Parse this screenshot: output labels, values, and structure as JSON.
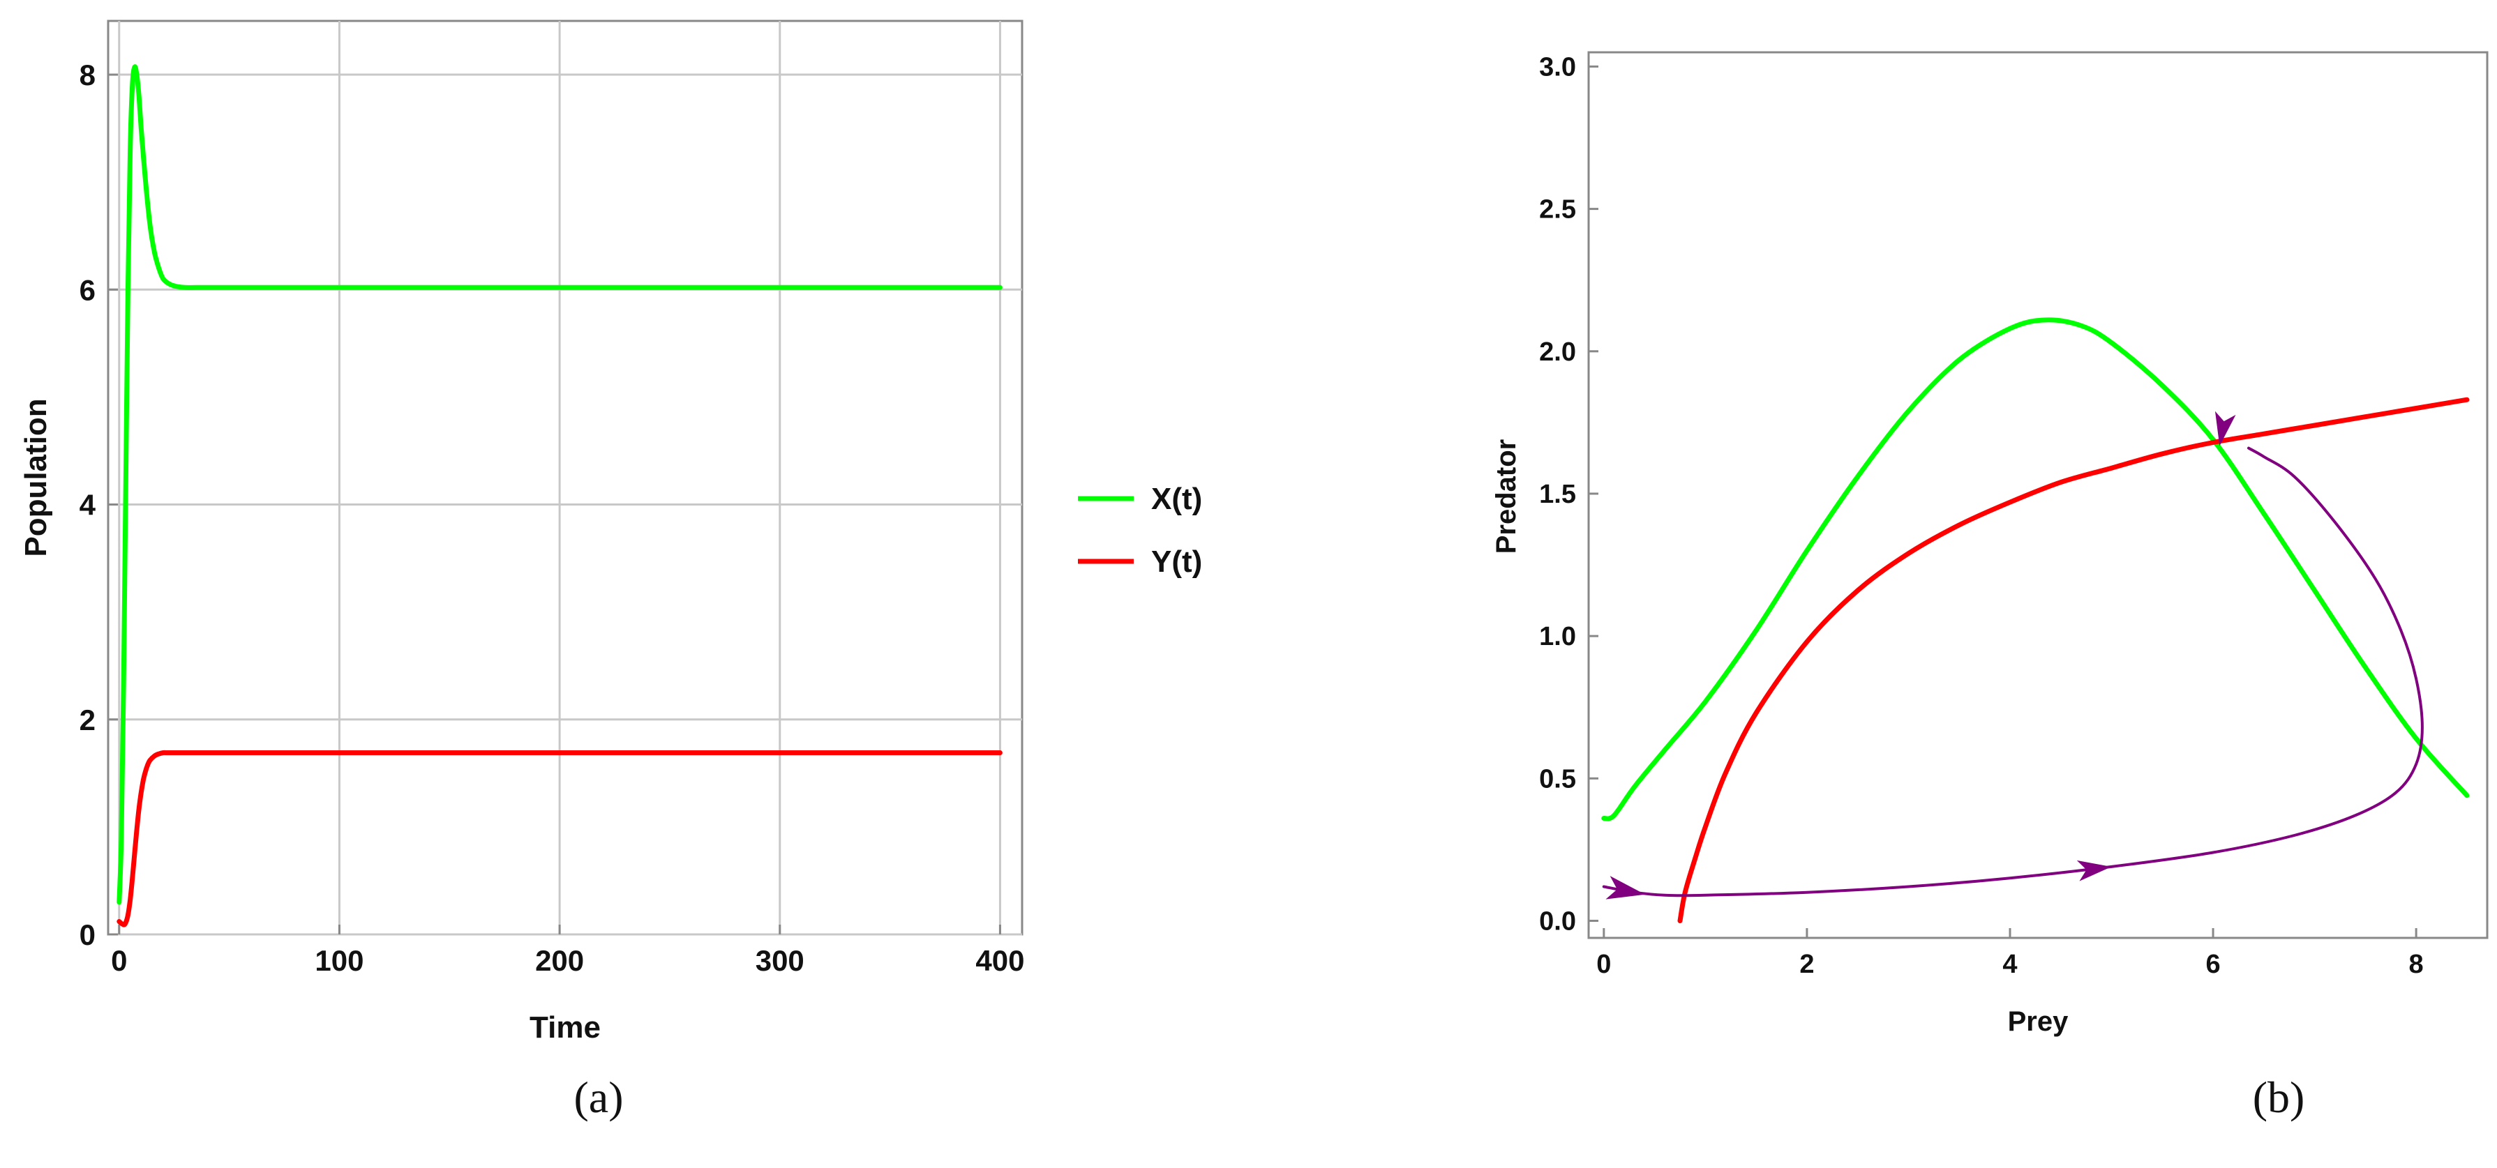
{
  "captions": {
    "a": "(a)",
    "b": "(b)"
  },
  "chart_data": [
    {
      "type": "line",
      "xlabel": "Time",
      "ylabel": "Population",
      "xlim": [
        -5,
        410
      ],
      "ylim": [
        0,
        8.5
      ],
      "xticks": [
        0,
        100,
        200,
        300,
        400
      ],
      "yticks": [
        0,
        2,
        4,
        6,
        8
      ],
      "grid": true,
      "legend_position": "right",
      "series": [
        {
          "name": "X(t)",
          "color": "#00ff00",
          "x": [
            0,
            1,
            2,
            3,
            4,
            5,
            6,
            7,
            8,
            9,
            10,
            12,
            14,
            16,
            18,
            20,
            23,
            26,
            30,
            40,
            60,
            100,
            200,
            300,
            400
          ],
          "y": [
            0.3,
            0.9,
            2.3,
            4.2,
            6.0,
            7.3,
            7.9,
            8.07,
            8.0,
            7.8,
            7.5,
            7.0,
            6.6,
            6.35,
            6.2,
            6.1,
            6.05,
            6.03,
            6.02,
            6.02,
            6.02,
            6.02,
            6.02,
            6.02,
            6.02
          ]
        },
        {
          "name": "Y(t)",
          "color": "#ff0000",
          "x": [
            0,
            2,
            3,
            4,
            5,
            6,
            7,
            8,
            9,
            10,
            11,
            12,
            13,
            14,
            16,
            18,
            20,
            22,
            25,
            30,
            50,
            100,
            200,
            300,
            400
          ],
          "y": [
            0.12,
            0.09,
            0.11,
            0.18,
            0.32,
            0.52,
            0.75,
            0.97,
            1.17,
            1.32,
            1.44,
            1.52,
            1.58,
            1.62,
            1.66,
            1.68,
            1.69,
            1.69,
            1.69,
            1.69,
            1.69,
            1.69,
            1.69,
            1.69,
            1.69
          ]
        }
      ]
    },
    {
      "type": "line",
      "xlabel": "Prey",
      "ylabel": "Predator",
      "xlim": [
        -0.15,
        8.7
      ],
      "ylim": [
        -0.06,
        3.05
      ],
      "xticks": [
        0,
        2,
        4,
        6,
        8
      ],
      "yticks": [
        0.0,
        0.5,
        1.0,
        1.5,
        2.0,
        2.5,
        3.0
      ],
      "grid": false,
      "series": [
        {
          "color": "#00ff00",
          "x": [
            0,
            0.1,
            0.3,
            0.6,
            1.0,
            1.5,
            2.0,
            2.5,
            3.0,
            3.5,
            4.0,
            4.35,
            4.7,
            5.0,
            5.5,
            6.0,
            6.5,
            7.0,
            7.5,
            8.0,
            8.5
          ],
          "y": [
            0.36,
            0.37,
            0.47,
            0.6,
            0.77,
            1.02,
            1.3,
            1.56,
            1.79,
            1.97,
            2.08,
            2.11,
            2.09,
            2.03,
            1.88,
            1.69,
            1.43,
            1.16,
            0.89,
            0.64,
            0.44
          ]
        },
        {
          "color": "#ff0000",
          "x": [
            0.75,
            0.8,
            0.9,
            1.0,
            1.2,
            1.5,
            2.0,
            2.5,
            3.0,
            3.5,
            4.0,
            4.5,
            5.0,
            5.5,
            6.0,
            6.5,
            7.0,
            7.5,
            8.0,
            8.5
          ],
          "y": [
            0.0,
            0.1,
            0.22,
            0.33,
            0.52,
            0.73,
            0.98,
            1.16,
            1.29,
            1.39,
            1.47,
            1.54,
            1.59,
            1.64,
            1.68,
            1.71,
            1.74,
            1.77,
            1.8,
            1.83
          ]
        },
        {
          "color": "#800080",
          "x": [
            0.0,
            0.3,
            0.6,
            1.0,
            2.0,
            3.0,
            4.0,
            5.0,
            6.0,
            6.8,
            7.4,
            7.8,
            8.0,
            8.06,
            8.0,
            7.85,
            7.6,
            7.2,
            6.8,
            6.5,
            6.35
          ],
          "y": [
            0.12,
            0.1,
            0.09,
            0.09,
            0.1,
            0.12,
            0.15,
            0.19,
            0.24,
            0.3,
            0.37,
            0.45,
            0.55,
            0.68,
            0.85,
            1.02,
            1.2,
            1.4,
            1.56,
            1.63,
            1.66
          ]
        }
      ],
      "annotations": "arrowheads on the purple trajectory"
    }
  ]
}
